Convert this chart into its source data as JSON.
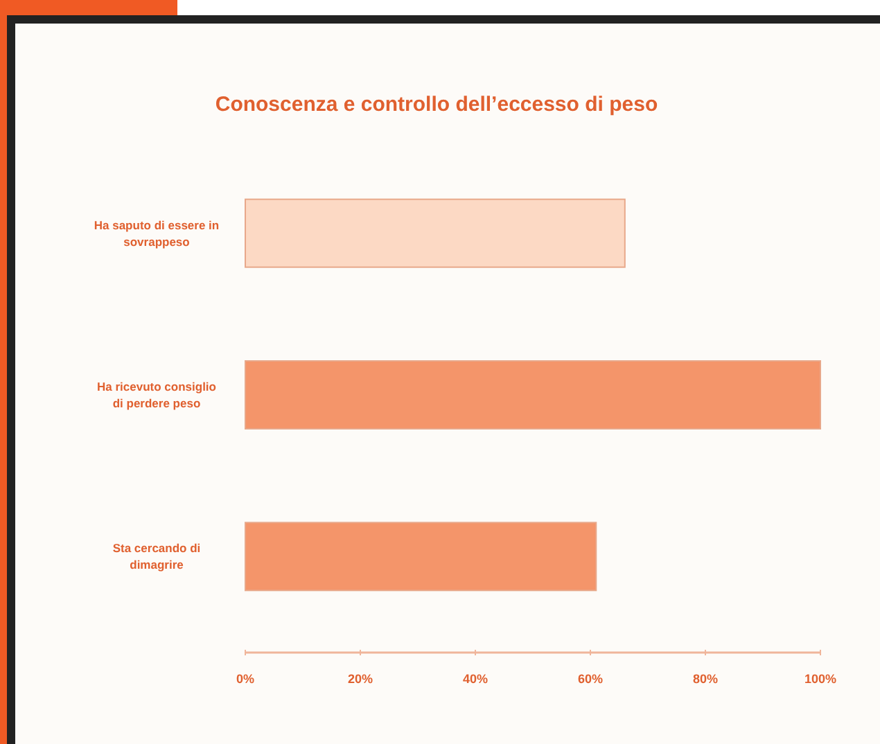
{
  "chart_data": {
    "type": "bar",
    "orientation": "horizontal",
    "title": "Conoscenza e controllo dell’eccesso di peso",
    "categories": [
      "Ha saputo di essere in sovrappeso",
      "Ha ricevuto consiglio di perdere peso",
      "Sta cercando di dimagrire"
    ],
    "values": [
      66,
      100,
      61
    ],
    "colors": [
      "#fcd9c4",
      "#f4956a",
      "#f4956a"
    ],
    "xlim": [
      0,
      100
    ],
    "xticks": [
      {
        "value": 0,
        "label": "0%"
      },
      {
        "value": 20,
        "label": "20%"
      },
      {
        "value": 40,
        "label": "40%"
      },
      {
        "value": 60,
        "label": "60%"
      },
      {
        "value": 80,
        "label": "80%"
      },
      {
        "value": 100,
        "label": "100%"
      }
    ],
    "grid": false
  }
}
